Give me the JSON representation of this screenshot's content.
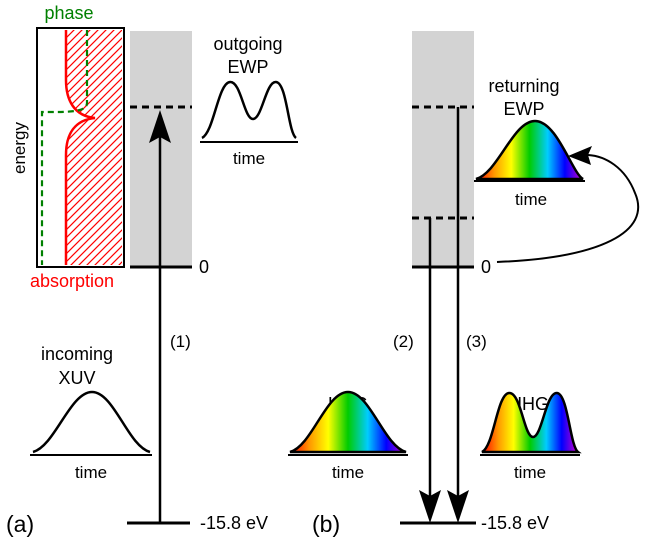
{
  "panel_a": {
    "label": "(a)",
    "inset": {
      "phase_label": "phase",
      "energy_label": "energy",
      "absorption_label": "absorption",
      "phase_color": "#008000",
      "absorption_color": "#ff0000"
    },
    "outgoing": {
      "line1": "outgoing",
      "line2": "EWP",
      "time": "time"
    },
    "incoming": {
      "line1": "incoming",
      "line2": "XUV",
      "time": "time"
    },
    "zero_label": "0",
    "ground_label": "-15.8 eV",
    "transition_label": "(1)"
  },
  "panel_b": {
    "label": "(b)",
    "returning": {
      "line1": "returning",
      "line2": "EWP",
      "time": "time"
    },
    "hhg_left": {
      "title": "HHG",
      "time": "time"
    },
    "hhg_right": {
      "title": "HHG",
      "time": "time"
    },
    "zero_label": "0",
    "ground_label": "-15.8 eV",
    "transition_label_2": "(2)",
    "transition_label_3": "(3)"
  },
  "colors": {
    "continuum_shade": "#d3d3d3",
    "line": "#000000"
  }
}
